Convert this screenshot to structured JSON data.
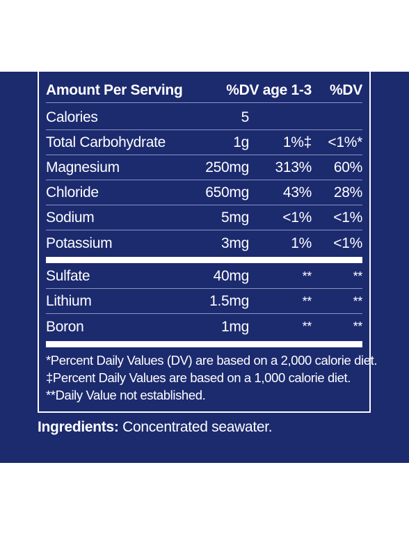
{
  "facts": {
    "header": {
      "col_name": "Amount Per Serving",
      "col_dv1": "%DV age 1-3",
      "col_dv2": "%DV"
    },
    "rows": [
      {
        "name": "Calories",
        "amount": "5",
        "dv1": "",
        "dv2": ""
      },
      {
        "name": "Total Carbohydrate",
        "amount": "1g",
        "dv1": "1%‡",
        "dv2": "<1%*"
      },
      {
        "name": "Magnesium",
        "amount": "250mg",
        "dv1": "313%",
        "dv2": "60%"
      },
      {
        "name": "Chloride",
        "amount": "650mg",
        "dv1": "43%",
        "dv2": "28%"
      },
      {
        "name": "Sodium",
        "amount": "5mg",
        "dv1": "<1%",
        "dv2": "<1%"
      },
      {
        "name": "Potassium",
        "amount": "3mg",
        "dv1": "1%",
        "dv2": "<1%"
      }
    ],
    "rows2": [
      {
        "name": "Sulfate",
        "amount": "40mg",
        "dv1": "**",
        "dv2": "**"
      },
      {
        "name": "Lithium",
        "amount": "1.5mg",
        "dv1": "**",
        "dv2": "**"
      },
      {
        "name": "Boron",
        "amount": "1mg",
        "dv1": "**",
        "dv2": "**"
      }
    ],
    "footnotes": [
      "*Percent Daily Values (DV) are based on a 2,000 calorie diet.",
      "‡Percent Daily Values are based on a 1,000 calorie diet.",
      "**Daily Value not established."
    ]
  },
  "ingredients": {
    "label": "Ingredients:",
    "text": " Concentrated seawater."
  },
  "colors": {
    "background_panel": "#1c2a6e",
    "text": "#ffffff"
  }
}
